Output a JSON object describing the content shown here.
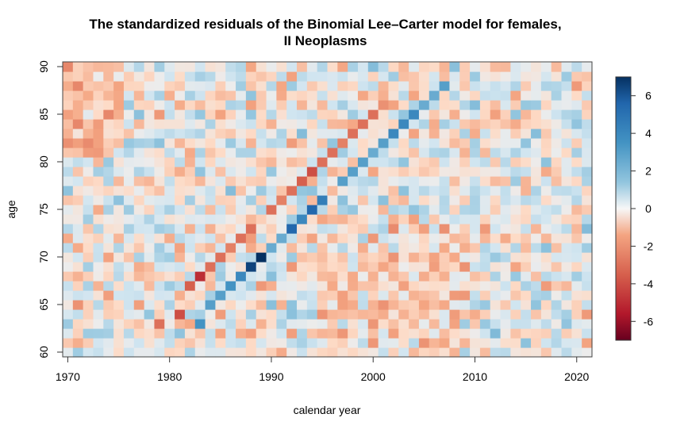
{
  "chart_data": {
    "type": "heatmap",
    "title_line1": "The standardized residuals of the Binomial Lee–Carter model for females,",
    "title_line2": "II Neoplasms",
    "xlabel": "calendar year",
    "ylabel": "age",
    "x_range": [
      1970,
      2021
    ],
    "y_range": [
      60,
      90
    ],
    "xticks": [
      "1970",
      "1980",
      "1990",
      "2000",
      "2010",
      "2020"
    ],
    "yticks": [
      "60",
      "65",
      "70",
      "75",
      "80",
      "85",
      "90"
    ],
    "colorbar": {
      "range": [
        -7,
        7
      ],
      "ticks": [
        "6",
        "4",
        "2",
        "0",
        "-2",
        "-4",
        "-6"
      ],
      "low_color": "#67001f",
      "mid_color": "#f7f7f7",
      "high_color": "#053061"
    },
    "cohort_diagonal": {
      "positive_cells": [
        [
          1983,
          63,
          3.5
        ],
        [
          1984,
          65,
          3.0
        ],
        [
          1985,
          66,
          3.0
        ],
        [
          1986,
          67,
          3.5
        ],
        [
          1987,
          68,
          4.0
        ],
        [
          1988,
          69,
          6.5
        ],
        [
          1989,
          70,
          7.0
        ],
        [
          1990,
          71,
          2.5
        ],
        [
          1991,
          72,
          2.5
        ],
        [
          1992,
          73,
          5.5
        ],
        [
          1993,
          74,
          4.0
        ],
        [
          1994,
          75,
          5.5
        ],
        [
          1995,
          76,
          4.5
        ],
        [
          1997,
          78,
          3.0
        ],
        [
          1998,
          79,
          3.0
        ],
        [
          1999,
          80,
          3.0
        ],
        [
          2000,
          81,
          2.5
        ],
        [
          2001,
          82,
          3.0
        ],
        [
          2002,
          83,
          4.0
        ],
        [
          2003,
          84,
          4.0
        ],
        [
          2004,
          85,
          4.0
        ],
        [
          2005,
          86,
          2.5
        ],
        [
          2006,
          87,
          2.5
        ],
        [
          2007,
          88,
          3.0
        ]
      ],
      "negative_cells": [
        [
          1979,
          63,
          -3.0
        ],
        [
          1981,
          64,
          -4.0
        ],
        [
          1982,
          67,
          -3.5
        ],
        [
          1983,
          68,
          -5.0
        ],
        [
          1984,
          69,
          -3.0
        ],
        [
          1985,
          70,
          -3.0
        ],
        [
          1986,
          71,
          -2.5
        ],
        [
          1987,
          72,
          -3.0
        ],
        [
          1988,
          73,
          -3.0
        ],
        [
          1990,
          75,
          -3.0
        ],
        [
          1991,
          76,
          -2.5
        ],
        [
          1992,
          77,
          -3.0
        ],
        [
          1993,
          78,
          -3.5
        ],
        [
          1994,
          79,
          -4.0
        ],
        [
          1995,
          80,
          -3.0
        ],
        [
          1996,
          81,
          -3.0
        ],
        [
          1997,
          82,
          -2.5
        ],
        [
          1998,
          83,
          -3.0
        ],
        [
          1999,
          84,
          -3.0
        ],
        [
          2000,
          85,
          -3.0
        ],
        [
          2001,
          86,
          -2.0
        ]
      ]
    }
  }
}
